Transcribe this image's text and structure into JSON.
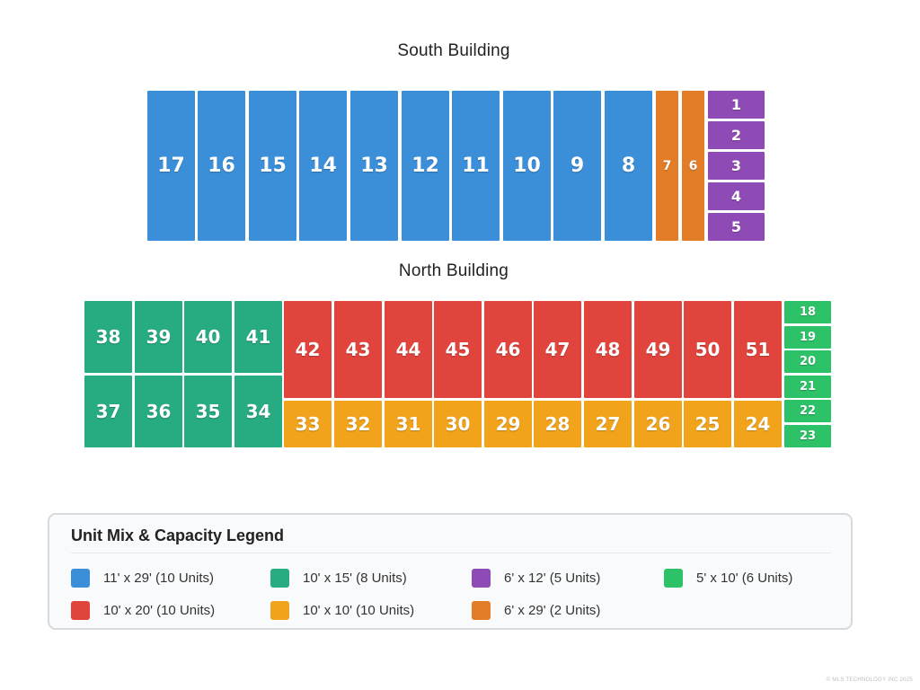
{
  "south_title": "South Building",
  "north_title": "North Building",
  "colors": {
    "blue": "#3b8fd9",
    "orange": "#e37c26",
    "purple": "#8f4bb5",
    "teal": "#26ab82",
    "red": "#e0443c",
    "amber": "#f1a31c",
    "green": "#2dc267"
  },
  "units": {
    "south_large": [
      "17",
      "16",
      "15",
      "14",
      "13",
      "12",
      "11",
      "10",
      "9",
      "8"
    ],
    "south_narrow": [
      "7",
      "6"
    ],
    "south_small": [
      "1",
      "2",
      "3",
      "4",
      "5"
    ],
    "north_teal_top": [
      "38",
      "39",
      "40",
      "41"
    ],
    "north_teal_bottom": [
      "37",
      "36",
      "35",
      "34"
    ],
    "north_red": [
      "42",
      "43",
      "44",
      "45",
      "46",
      "47",
      "48",
      "49",
      "50",
      "51"
    ],
    "north_amber": [
      "33",
      "32",
      "31",
      "30",
      "29",
      "28",
      "27",
      "26",
      "25",
      "24"
    ],
    "north_green": [
      "18",
      "19",
      "20",
      "21",
      "22",
      "23"
    ]
  },
  "legend": {
    "title": "Unit Mix & Capacity Legend",
    "items": [
      {
        "label": "11' x 29' (10 Units)",
        "color": "#3b8fd9"
      },
      {
        "label": "10' x 15' (8 Units)",
        "color": "#26ab82"
      },
      {
        "label": "6' x 12' (5 Units)",
        "color": "#8f4bb5"
      },
      {
        "label": "5' x 10' (6 Units)",
        "color": "#2dc267"
      },
      {
        "label": "10' x 20' (10 Units)",
        "color": "#e0443c"
      },
      {
        "label": "10' x 10' (10 Units)",
        "color": "#f1a31c"
      },
      {
        "label": "6' x 29' (2 Units)",
        "color": "#e37c26"
      }
    ]
  },
  "watermark": "© MLS TECHNOLOGY INC 2025"
}
